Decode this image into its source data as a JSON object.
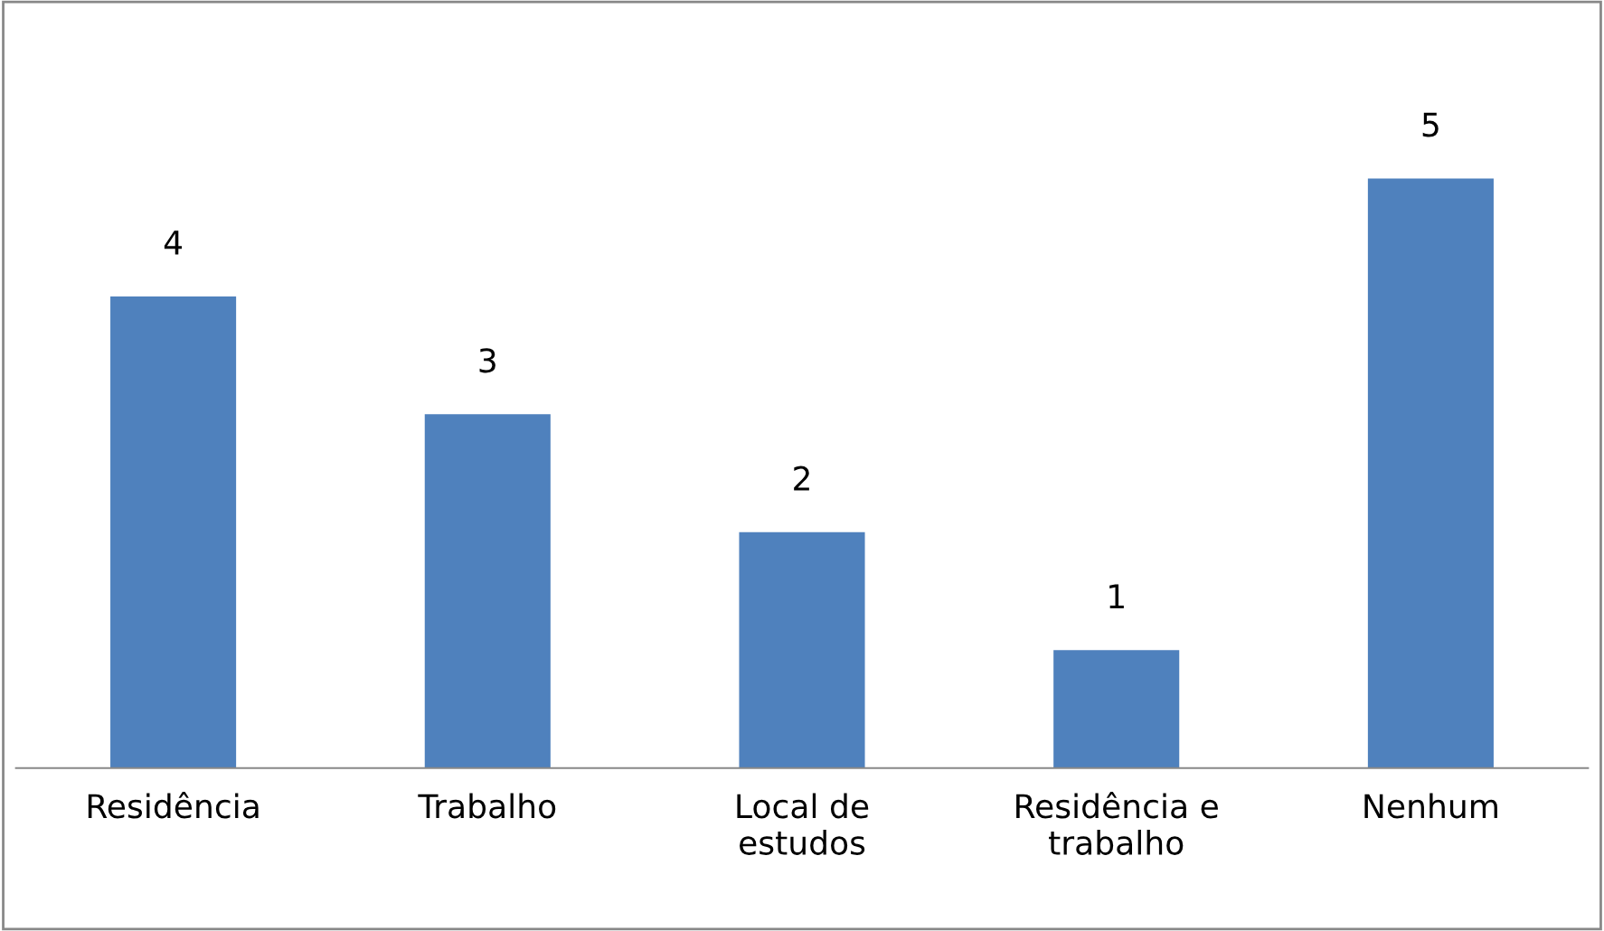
{
  "chart_data": {
    "type": "bar",
    "categories": [
      "Residência",
      "Trabalho",
      "Local de\nestudos",
      "Residência e\ntrabalho",
      "Nenhum"
    ],
    "values": [
      4,
      3,
      2,
      1,
      5
    ],
    "color": "#4f81bd",
    "data_labels": true,
    "tick_labels": "x",
    "grid": false,
    "legend": false
  }
}
